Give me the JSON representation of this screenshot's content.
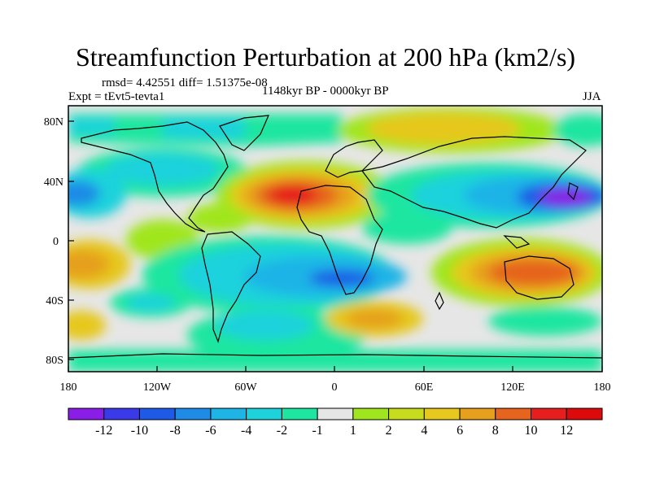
{
  "title": "Streamfunction Perturbation at 200 hPa (km2/s)",
  "stats_line": "rmsd= 4.42551 diff= 1.51375e-08",
  "expt_label": "Expt = tEvt5-tevta1",
  "period_label": "1148kyr BP - 0000kyr BP",
  "season_label": "JJA",
  "axes": {
    "x_ticks": [
      "180",
      "120W",
      "60W",
      "0",
      "60E",
      "120E",
      "180"
    ],
    "y_ticks": [
      "80N",
      "40N",
      "0",
      "40S",
      "80S"
    ]
  },
  "colorbar": {
    "labels": [
      "-12",
      "-10",
      "-8",
      "-6",
      "-4",
      "-2",
      "-1",
      "1",
      "2",
      "4",
      "6",
      "8",
      "10",
      "12"
    ],
    "colors": [
      "#8a1ee6",
      "#3a3ae8",
      "#1e5ae6",
      "#1e8be6",
      "#1eb4e6",
      "#1ed2dc",
      "#1ee6a0",
      "#e6e6e6",
      "#a0e61e",
      "#c8dc1e",
      "#e6c81e",
      "#e6a01e",
      "#e6641e",
      "#e61e1e",
      "#dc0a0a"
    ]
  }
}
